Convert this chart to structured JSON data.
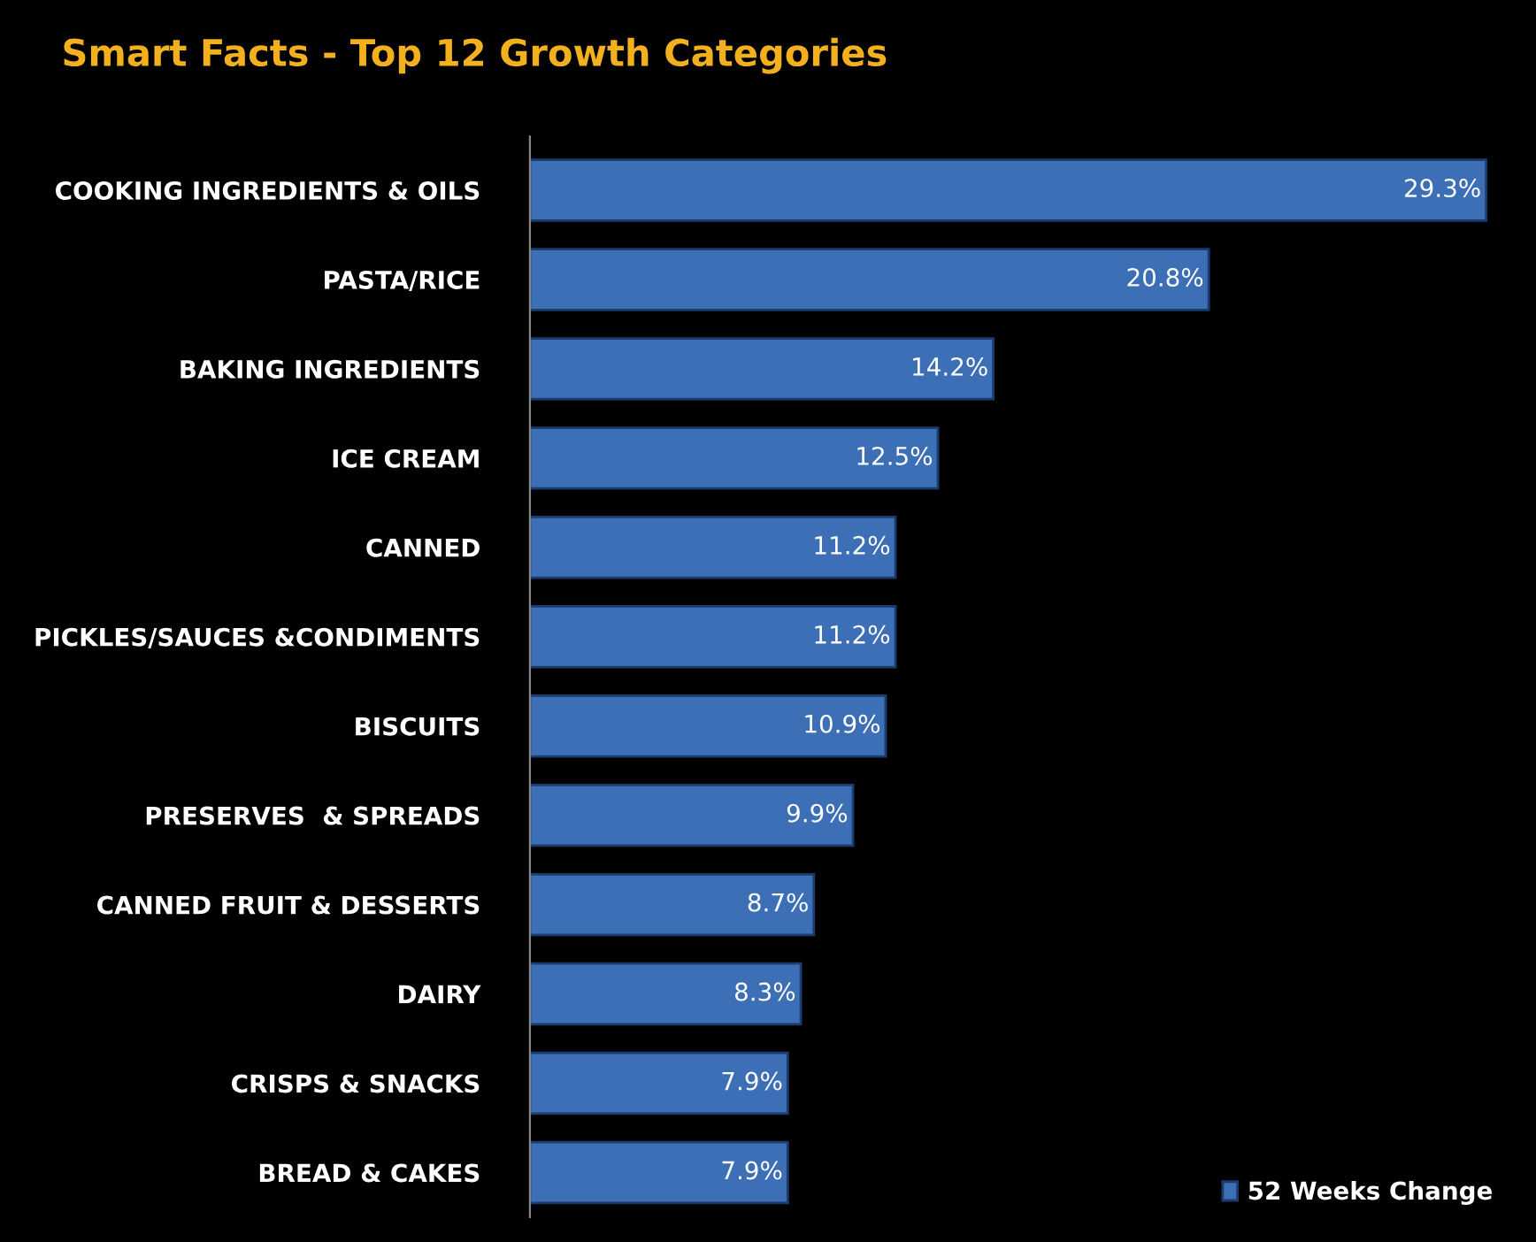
{
  "chart_data": {
    "type": "bar",
    "orientation": "horizontal",
    "title": "Smart Facts - Top 12 Growth Categories",
    "categories": [
      "COOKING INGREDIENTS & OILS",
      "PASTA/RICE",
      "BAKING INGREDIENTS",
      "ICE CREAM",
      "CANNED",
      "PICKLES/SAUCES &CONDIMENTS",
      "BISCUITS",
      "PRESERVES  & SPREADS",
      "CANNED FRUIT & DESSERTS",
      "DAIRY",
      "CRISPS & SNACKS",
      "BREAD & CAKES"
    ],
    "series": [
      {
        "name": "52 Weeks Change",
        "color": "#3d6fb6",
        "values": [
          29.3,
          20.8,
          14.2,
          12.5,
          11.2,
          11.2,
          10.9,
          9.9,
          8.7,
          8.3,
          7.9,
          7.9
        ],
        "value_labels": [
          "29.3%",
          "20.8%",
          "14.2%",
          "12.5%",
          "11.2%",
          "11.2%",
          "10.9%",
          "9.9%",
          "8.7%",
          "8.3%",
          "7.9%",
          "7.9%"
        ]
      }
    ],
    "legend": "bottom right",
    "grid": false
  }
}
